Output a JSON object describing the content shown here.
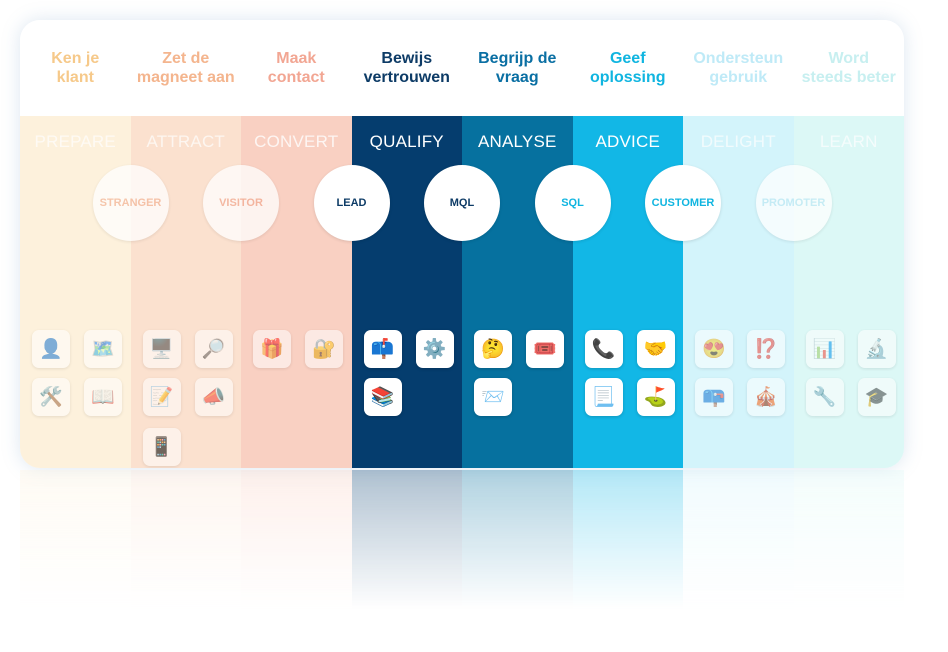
{
  "columns": [
    {
      "key": "prepare",
      "heading": [
        "Ken je",
        "klant"
      ],
      "stage": "PREPARE",
      "head_color": "#fbe3b8",
      "body_color": "#fdf1dc",
      "stage_color": "#ffffff",
      "faded": true,
      "tiles": [
        {
          "icon": "person-icon",
          "glyph": "👤"
        },
        {
          "icon": "map-icon",
          "glyph": "🗺️"
        },
        {
          "icon": "tools-icon",
          "glyph": "🛠️"
        },
        {
          "icon": "book-icon",
          "glyph": "📖"
        }
      ]
    },
    {
      "key": "attract",
      "heading": [
        "Zet de",
        "magneet aan"
      ],
      "stage": "ATTRACT",
      "head_color": "#f9cfae",
      "body_color": "#fbe1cf",
      "stage_color": "#ffffff",
      "faded": true,
      "tiles": [
        {
          "icon": "computer-icon",
          "glyph": "🖥️"
        },
        {
          "icon": "magnifier-icon",
          "glyph": "🔎"
        },
        {
          "icon": "memo-icon",
          "glyph": "📝"
        },
        {
          "icon": "megaphone-icon",
          "glyph": "📣"
        },
        {
          "icon": "mobile-icon",
          "glyph": "📱"
        }
      ]
    },
    {
      "key": "convert",
      "heading": [
        "Maak",
        "contact"
      ],
      "stage": "CONVERT",
      "head_color": "#f7b9a8",
      "body_color": "#f9d0c2",
      "stage_color": "#ffffff",
      "faded": true,
      "tiles": [
        {
          "icon": "gift-icon",
          "glyph": "🎁"
        },
        {
          "icon": "lock-icon",
          "glyph": "🔐"
        }
      ]
    },
    {
      "key": "qualify",
      "heading": [
        "Bewijs",
        "vertrouwen"
      ],
      "stage": "QUALIFY",
      "head_color": "#0d3b66",
      "body_color": "#053d6e",
      "stage_color": "#ffffff",
      "faded": false,
      "tiles": [
        {
          "icon": "mailbox-icon",
          "glyph": "📫"
        },
        {
          "icon": "gear-icon",
          "glyph": "⚙️"
        },
        {
          "icon": "books-icon",
          "glyph": "📚"
        }
      ]
    },
    {
      "key": "analyse",
      "heading": [
        "Begrijp de",
        "vraag"
      ],
      "stage": "ANALYSE",
      "head_color": "#0a6fa3",
      "body_color": "#06719f",
      "stage_color": "#ffffff",
      "faded": false,
      "tiles": [
        {
          "icon": "thinking-face-icon",
          "glyph": "🤔"
        },
        {
          "icon": "ticket-icon",
          "glyph": "🎟️"
        },
        {
          "icon": "inbox-icon",
          "glyph": "📨"
        }
      ]
    },
    {
      "key": "advice",
      "heading": [
        "Geef",
        "oplossing"
      ],
      "stage": "ADVICE",
      "head_color": "#10b5e0",
      "body_color": "#12b7e6",
      "stage_color": "#ffffff",
      "faded": false,
      "tiles": [
        {
          "icon": "phone-icon",
          "glyph": "📞"
        },
        {
          "icon": "handshake-icon",
          "glyph": "🤝"
        },
        {
          "icon": "document-icon",
          "glyph": "📃"
        },
        {
          "icon": "golf-flag-icon",
          "glyph": "⛳"
        }
      ]
    },
    {
      "key": "delight",
      "heading": [
        "Ondersteun",
        "gebruik"
      ],
      "stage": "DELIGHT",
      "head_color": "#bfeffa",
      "body_color": "#d3f4fb",
      "stage_color": "#ffffff",
      "faded": true,
      "tiles": [
        {
          "icon": "smile-icon",
          "glyph": "😍"
        },
        {
          "icon": "exclamation-icon",
          "glyph": "⁉️"
        },
        {
          "icon": "mailbox-icon",
          "glyph": "📪"
        },
        {
          "icon": "gift-box-icon",
          "glyph": "🎪"
        }
      ]
    },
    {
      "key": "learn",
      "heading": [
        "Word",
        "steeds beter"
      ],
      "stage": "LEARN",
      "head_color": "#c9f3f4",
      "body_color": "#dcf8f6",
      "stage_color": "#ffffff",
      "faded": true,
      "tiles": [
        {
          "icon": "bar-chart-icon",
          "glyph": "📊"
        },
        {
          "icon": "microscope-icon",
          "glyph": "🔬"
        },
        {
          "icon": "wrench-icon",
          "glyph": "🔧"
        },
        {
          "icon": "graduation-cap-icon",
          "glyph": "🎓"
        }
      ]
    }
  ],
  "circles": [
    {
      "label": "STRANGER",
      "color": "#f3b79a",
      "faded": true
    },
    {
      "label": "VISITOR",
      "color": "#f2ab93",
      "faded": true
    },
    {
      "label": "LEAD",
      "color": "#0d3b66",
      "faded": false
    },
    {
      "label": "MQL",
      "color": "#0d3b66",
      "faded": false
    },
    {
      "label": "SQL",
      "color": "#10b5e0",
      "faded": false
    },
    {
      "label": "CUSTOMER",
      "color": "#10b5e0",
      "faded": false
    },
    {
      "label": "PROMOTER",
      "color": "#bfe8f4",
      "faded": true
    }
  ]
}
